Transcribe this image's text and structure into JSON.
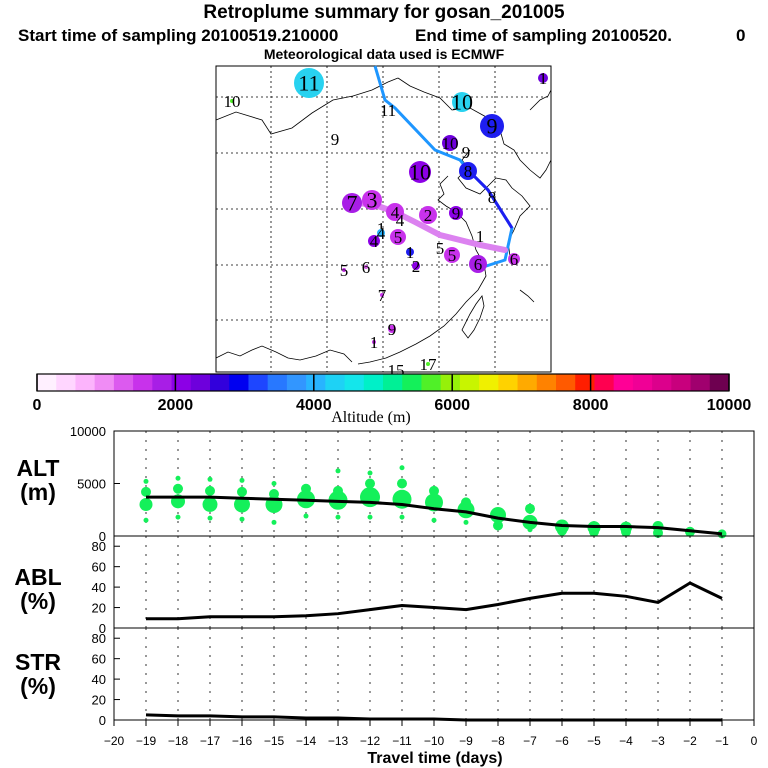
{
  "header": {
    "title": "Retroplume summary for gosan_201005",
    "start": "Start time of sampling 20100519.210000",
    "end": "End time of sampling 20100520.",
    "end_extra": "0",
    "met": "Meteorological data used is ECMWF"
  },
  "colorbar": {
    "title": "Altitude (m)",
    "ticks": [
      "0",
      "2000",
      "4000",
      "6000",
      "8000",
      "10000"
    ],
    "colors": [
      "#fff0ff",
      "#ffd6ff",
      "#fcb4fc",
      "#f08cf5",
      "#dc5aef",
      "#c832eb",
      "#a81ee6",
      "#8c00e6",
      "#6e00dc",
      "#3200dc",
      "#0000f0",
      "#1e46ff",
      "#2878ff",
      "#3296ff",
      "#28b4ff",
      "#1ed2f5",
      "#14e6eb",
      "#00f0c8",
      "#00f096",
      "#14f05a",
      "#50f028",
      "#96f00a",
      "#c8f500",
      "#f0f000",
      "#ffd200",
      "#ffaa00",
      "#ff8200",
      "#ff5a00",
      "#ff1e00",
      "#ff0050",
      "#ff0096",
      "#f00096",
      "#dc008c",
      "#c8007d",
      "#a0006e",
      "#6e0050"
    ]
  },
  "map": {
    "labels": [
      {
        "text": "11",
        "color": "#28d2f0",
        "size": 15
      },
      {
        "text": "10",
        "color": "#28d2f0",
        "size": 10
      },
      {
        "text": "10",
        "color": "#50f028",
        "size": 2
      },
      {
        "text": "1",
        "color": "#6e00dc",
        "size": 5
      },
      {
        "text": "9",
        "color": "#1e1ef0",
        "size": 12
      },
      {
        "text": "9",
        "color": "#3296ff",
        "size": 0
      },
      {
        "text": "11",
        "color": "#28b4ff",
        "size": 0
      },
      {
        "text": "10",
        "color": "#6e00dc",
        "size": 8
      },
      {
        "text": "9",
        "color": "#6e00dc",
        "size": 0
      },
      {
        "text": "10",
        "color": "#8c00e6",
        "size": 11
      },
      {
        "text": "8",
        "color": "#1e1ef0",
        "size": 9
      },
      {
        "text": "8",
        "color": "#1e1ef0",
        "size": 0
      },
      {
        "text": "3",
        "color": "#c832eb",
        "size": 10
      },
      {
        "text": "4",
        "color": "#c832eb",
        "size": 9
      },
      {
        "text": "2",
        "color": "#c832eb",
        "size": 9
      },
      {
        "text": "9",
        "color": "#8c00e6",
        "size": 7
      },
      {
        "text": "4",
        "color": "#8c00e6",
        "size": 6
      },
      {
        "text": "7",
        "color": "#a81ee6",
        "size": 10
      },
      {
        "text": "1",
        "color": "#c832eb",
        "size": 0
      },
      {
        "text": "4",
        "color": "#28b4ff",
        "size": 4
      },
      {
        "text": "5",
        "color": "#c832eb",
        "size": 8
      },
      {
        "text": "4",
        "color": "#c832eb",
        "size": 0
      },
      {
        "text": "1",
        "color": "#1e1ef0",
        "size": 4
      },
      {
        "text": "2",
        "color": "#8c00e6",
        "size": 4
      },
      {
        "text": "5",
        "color": "#c832eb",
        "size": 2
      },
      {
        "text": "6",
        "color": "#dc5aef",
        "size": 2
      },
      {
        "text": "5",
        "color": "#c832eb",
        "size": 8
      },
      {
        "text": "6",
        "color": "#a81ee6",
        "size": 9
      },
      {
        "text": "6",
        "color": "#c832eb",
        "size": 6
      },
      {
        "text": "5",
        "color": "#a81ee6",
        "size": 0
      },
      {
        "text": "7",
        "color": "#c832eb",
        "size": 2
      },
      {
        "text": "9",
        "color": "#c832eb",
        "size": 4
      },
      {
        "text": "1",
        "color": "#c832eb",
        "size": 2
      },
      {
        "text": "15",
        "color": "#c832eb",
        "size": 0
      },
      {
        "text": "17",
        "color": "#50f028",
        "size": 2
      },
      {
        "text": "1",
        "color": "#c832eb",
        "size": 0
      }
    ]
  },
  "chart_data": [
    {
      "type": "line",
      "title": "ALT (m)",
      "panel_label_1": "ALT",
      "panel_label_2": "(m)",
      "xlabel": "Travel time (days)",
      "xlim": [
        -20,
        0
      ],
      "ylim": [
        0,
        10000
      ],
      "y_ticks": [
        "0",
        "5000",
        "10000"
      ],
      "x_ticks": [
        "−20",
        "−19",
        "−18",
        "−17",
        "−16",
        "−15",
        "−14",
        "−13",
        "−12",
        "−11",
        "−10",
        "−9",
        "−8",
        "−7",
        "−6",
        "−5",
        "−4",
        "−3",
        "−2",
        "−1",
        "0"
      ],
      "x": [
        -19,
        -18,
        -17,
        -16,
        -15,
        -14,
        -13,
        -12,
        -11,
        -10,
        -9,
        -8,
        -7,
        -6,
        -5,
        -4,
        -3,
        -2,
        -1
      ],
      "values": [
        3700,
        3700,
        3700,
        3600,
        3500,
        3400,
        3300,
        3200,
        3000,
        2600,
        2300,
        1700,
        1300,
        1000,
        900,
        900,
        800,
        500,
        200
      ],
      "scatter": [
        {
          "x": -19,
          "y": [
            3000,
            4200,
            5200,
            1500
          ]
        },
        {
          "x": -18,
          "y": [
            3300,
            4500,
            5500,
            1800
          ]
        },
        {
          "x": -17,
          "y": [
            3000,
            4300,
            5400,
            1700
          ]
        },
        {
          "x": -16,
          "y": [
            3000,
            4200,
            5300,
            1600
          ]
        },
        {
          "x": -15,
          "y": [
            3000,
            4000,
            5000,
            1300
          ]
        },
        {
          "x": -14,
          "y": [
            3500,
            4500,
            1900
          ]
        },
        {
          "x": -13,
          "y": [
            3400,
            4300,
            6200,
            1800
          ]
        },
        {
          "x": -12,
          "y": [
            3700,
            5000,
            6000,
            1800
          ]
        },
        {
          "x": -11,
          "y": [
            3500,
            5000,
            1800,
            6500
          ]
        },
        {
          "x": -10,
          "y": [
            3200,
            4300,
            1500
          ]
        },
        {
          "x": -9,
          "y": [
            2500,
            3200,
            1300
          ]
        },
        {
          "x": -8,
          "y": [
            2000,
            1000
          ]
        },
        {
          "x": -7,
          "y": [
            1300,
            2600,
            600
          ]
        },
        {
          "x": -6,
          "y": [
            900,
            500
          ]
        },
        {
          "x": -5,
          "y": [
            800,
            400
          ]
        },
        {
          "x": -4,
          "y": [
            800,
            400
          ]
        },
        {
          "x": -3,
          "y": [
            900,
            300
          ]
        },
        {
          "x": -2,
          "y": [
            400
          ]
        },
        {
          "x": -1,
          "y": [
            200
          ]
        }
      ]
    },
    {
      "type": "line",
      "title": "ABL (%)",
      "panel_label_1": "ABL",
      "panel_label_2": "(%)",
      "xlim": [
        -20,
        0
      ],
      "ylim": [
        0,
        90
      ],
      "y_ticks": [
        "0",
        "20",
        "40",
        "60",
        "80"
      ],
      "x": [
        -19,
        -18,
        -17,
        -16,
        -15,
        -14,
        -13,
        -12,
        -11,
        -10,
        -9,
        -8,
        -7,
        -6,
        -5,
        -4,
        -3,
        -2,
        -1
      ],
      "values": [
        9,
        9,
        11,
        11,
        11,
        12,
        14,
        18,
        22,
        20,
        18,
        23,
        29,
        34,
        34,
        31,
        25,
        44,
        29
      ]
    },
    {
      "type": "line",
      "title": "STR (%)",
      "panel_label_1": "STR",
      "panel_label_2": "(%)",
      "xlim": [
        -20,
        0
      ],
      "ylim": [
        0,
        90
      ],
      "y_ticks": [
        "0",
        "20",
        "40",
        "60",
        "80"
      ],
      "x": [
        -19,
        -18,
        -17,
        -16,
        -15,
        -14,
        -13,
        -12,
        -11,
        -10,
        -9,
        -8,
        -7,
        -6,
        -5,
        -4,
        -3,
        -2,
        -1
      ],
      "values": [
        5,
        4,
        4,
        3,
        3,
        2,
        2,
        1,
        1,
        1,
        0,
        0,
        0,
        0,
        0,
        0,
        0,
        0,
        0
      ]
    }
  ]
}
